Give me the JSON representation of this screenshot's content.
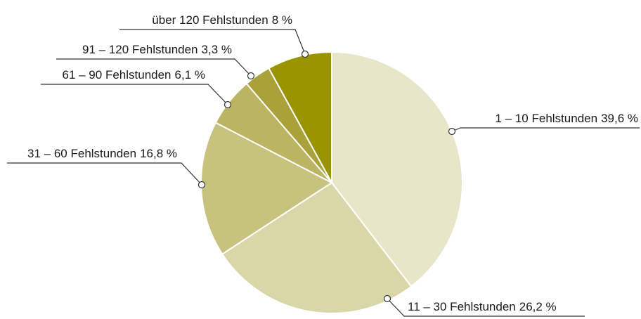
{
  "chart_data": {
    "type": "pie",
    "categories": [
      "1 – 10 Fehlstunden",
      "11 – 30 Fehlstunden",
      "31 – 60 Fehlstunden",
      "61 – 90 Fehlstunden",
      "91 – 120 Fehlstunden",
      "über 120 Fehlstunden"
    ],
    "values": [
      39.6,
      26.2,
      16.8,
      6.1,
      3.3,
      8
    ],
    "value_labels": [
      "39,6 %",
      "26,2 %",
      "16,8 %",
      "6,1 %",
      "3,3 %",
      "8 %"
    ],
    "colors": [
      "#e8e6c9",
      "#d9d6a7",
      "#c8c27f",
      "#bbb461",
      "#aaa13a",
      "#999400"
    ]
  }
}
